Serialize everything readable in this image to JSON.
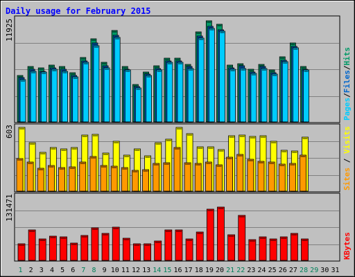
{
  "chart_data": [
    {
      "type": "bar",
      "title": "Daily usage for February 2015",
      "categories": [
        "1",
        "2",
        "3",
        "4",
        "5",
        "6",
        "7",
        "8",
        "9",
        "10",
        "11",
        "12",
        "13",
        "14",
        "15",
        "16",
        "17",
        "18",
        "19",
        "20",
        "21",
        "22",
        "23",
        "24",
        "25",
        "26",
        "27",
        "28",
        "29",
        "30",
        "31"
      ],
      "weekend_days": [
        "1",
        "7",
        "8",
        "14",
        "15",
        "21",
        "22",
        "28",
        "29"
      ],
      "ylim": [
        0,
        11925
      ],
      "ytick_label": "11925",
      "series": [
        {
          "name": "Hits",
          "color": "#009966",
          "values": [
            5500,
            6500,
            6400,
            6700,
            6500,
            5800,
            7600,
            9800,
            7000,
            10800,
            6500,
            4400,
            5900,
            6600,
            7500,
            7500,
            6800,
            10600,
            11900,
            11500,
            6700,
            6900,
            6200,
            6800,
            6100,
            7700,
            9300,
            6500,
            0,
            0,
            0
          ]
        },
        {
          "name": "Files",
          "color": "#0066cc",
          "values": [
            5200,
            6200,
            6000,
            6400,
            6200,
            5500,
            7200,
            9300,
            6600,
            10200,
            6200,
            4200,
            5600,
            6300,
            7200,
            7200,
            6500,
            10100,
            11300,
            10900,
            6400,
            6600,
            5900,
            6500,
            5800,
            7300,
            8900,
            6200,
            0,
            0,
            0
          ]
        },
        {
          "name": "Pages",
          "color": "#00ccff",
          "values": [
            5000,
            6000,
            5900,
            6200,
            6000,
            5300,
            7000,
            9000,
            6400,
            10000,
            6100,
            4000,
            5500,
            6100,
            7000,
            7000,
            6300,
            9900,
            11000,
            10700,
            6200,
            6300,
            5700,
            6300,
            5600,
            7100,
            8700,
            6100,
            0,
            0,
            0
          ]
        }
      ]
    },
    {
      "type": "bar",
      "ylim": [
        0,
        603
      ],
      "ytick_label": "603",
      "series": [
        {
          "name": "Visits",
          "color": "#ffff00",
          "values": [
            600,
            460,
            370,
            410,
            400,
            415,
            530,
            540,
            360,
            475,
            340,
            400,
            335,
            460,
            490,
            600,
            545,
            420,
            420,
            395,
            525,
            530,
            520,
            525,
            470,
            385,
            380,
            510,
            0,
            0,
            0
          ]
        },
        {
          "name": "Sites",
          "color": "#ff9900",
          "values": [
            310,
            275,
            215,
            245,
            225,
            230,
            275,
            330,
            240,
            235,
            225,
            195,
            200,
            260,
            270,
            410,
            270,
            265,
            275,
            250,
            320,
            345,
            300,
            280,
            275,
            255,
            265,
            340,
            0,
            0,
            0
          ]
        }
      ]
    },
    {
      "type": "bar",
      "ylim": [
        0,
        131471
      ],
      "ytick_label": "131471",
      "series": [
        {
          "name": "KBytes",
          "color": "#ff0000",
          "values": [
            35000,
            63000,
            44000,
            50000,
            48000,
            36000,
            51000,
            67000,
            56000,
            69000,
            46000,
            34000,
            35000,
            40000,
            63000,
            63000,
            45000,
            58000,
            106000,
            110000,
            53000,
            93000,
            43000,
            48000,
            44000,
            48000,
            56000,
            45000,
            0,
            0,
            0
          ]
        }
      ]
    }
  ]
}
